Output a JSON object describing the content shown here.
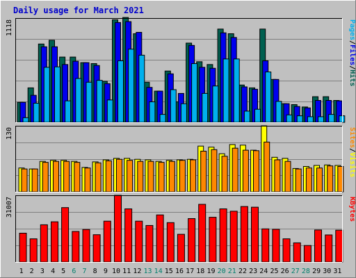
{
  "colors": {
    "frame": "#c0c0c0",
    "panel": "#c0c0c0",
    "hits": "#006050",
    "files": "#0000ee",
    "pages": "#00b0ee",
    "visits": "#ffff00",
    "sites": "#ff8800",
    "kbytes": "#ff0000",
    "title": "#0000cc",
    "weekend": "#00806e",
    "weekday": "#000000"
  },
  "chart_data": {
    "type": "bar",
    "title": "Daily usage for March 2021",
    "categories": [
      "1",
      "2",
      "3",
      "4",
      "5",
      "6",
      "7",
      "8",
      "9",
      "10",
      "11",
      "12",
      "13",
      "14",
      "15",
      "16",
      "17",
      "18",
      "19",
      "20",
      "21",
      "22",
      "23",
      "24",
      "25",
      "26",
      "27",
      "28",
      "29",
      "30",
      "31"
    ],
    "weekend_days": [
      "6",
      "7",
      "13",
      "14",
      "20",
      "21",
      "27",
      "28"
    ],
    "panels": [
      {
        "key": "requests",
        "max_label": "1118",
        "ylim": [
          0,
          1118
        ],
        "legend": [
          {
            "name": "Pages",
            "color_key": "pages"
          },
          {
            "name": "/",
            "color_key": "weekday"
          },
          {
            "name": "Files",
            "color_key": "files"
          },
          {
            "name": "/",
            "color_key": "weekday"
          },
          {
            "name": "Hits",
            "color_key": "hits"
          }
        ],
        "series": [
          {
            "name": "Hits",
            "color_key": "hits",
            "values": [
              215,
              370,
              840,
              880,
              700,
              700,
              640,
              630,
              440,
              1100,
              1125,
              950,
              430,
              335,
              550,
              220,
              850,
              650,
              620,
              1000,
              950,
              400,
              370,
              1000,
              460,
              200,
              190,
              165,
              275,
              275,
              235
            ]
          },
          {
            "name": "Files",
            "color_key": "files",
            "values": [
              215,
              290,
              810,
              810,
              620,
              655,
              640,
              610,
              415,
              1070,
              1080,
              965,
              375,
              335,
              520,
              310,
              825,
              590,
              580,
              960,
              910,
              380,
              355,
              660,
              460,
              200,
              170,
              155,
              235,
              235,
              230
            ]
          },
          {
            "name": "Pages",
            "color_key": "pages",
            "values": [
              50,
              205,
              590,
              595,
              230,
              470,
              430,
              450,
              240,
              660,
              785,
              720,
              220,
              85,
              350,
              200,
              630,
              310,
              390,
              680,
              680,
              120,
              140,
              540,
              225,
              80,
              70,
              60,
              60,
              85,
              70
            ]
          }
        ]
      },
      {
        "key": "visitors",
        "max_label": "130",
        "ylim": [
          0,
          130
        ],
        "legend": [
          {
            "name": "Sites",
            "color_key": "sites"
          },
          {
            "name": "/",
            "color_key": "weekday"
          },
          {
            "name": "Visits",
            "color_key": "visits"
          }
        ],
        "series": [
          {
            "name": "Visits",
            "color_key": "visits",
            "values": [
              47,
              45,
              60,
              62,
              62,
              60,
              48,
              59,
              63,
              66,
              66,
              64,
              63,
              60,
              62,
              63,
              64,
              90,
              88,
              75,
              93,
              92,
              82,
              130,
              68,
              66,
              46,
              50,
              52,
              53,
              52
            ]
          },
          {
            "name": "Sites",
            "color_key": "sites",
            "values": [
              45,
              45,
              58,
              60,
              60,
              58,
              47,
              57,
              61,
              64,
              62,
              60,
              60,
              58,
              60,
              62,
              63,
              80,
              83,
              70,
              86,
              82,
              81,
              98,
              63,
              60,
              45,
              47,
              47,
              51,
              50
            ]
          }
        ]
      },
      {
        "key": "kbytes",
        "max_label": "31007",
        "ylim": [
          0,
          31007
        ],
        "legend": [
          {
            "name": "KBytes",
            "color_key": "kbytes"
          }
        ],
        "series": [
          {
            "name": "KBytes",
            "color_key": "kbytes",
            "values": [
              13400,
              10800,
              17300,
              18700,
              25300,
              14200,
              15100,
              12700,
              19000,
              31007,
              24700,
              19000,
              17000,
              21900,
              18300,
              12900,
              20200,
              26800,
              20800,
              24700,
              23600,
              25800,
              25500,
              15400,
              15200,
              10800,
              8900,
              7700,
              14900,
              12600,
              14800
            ]
          }
        ]
      }
    ]
  }
}
